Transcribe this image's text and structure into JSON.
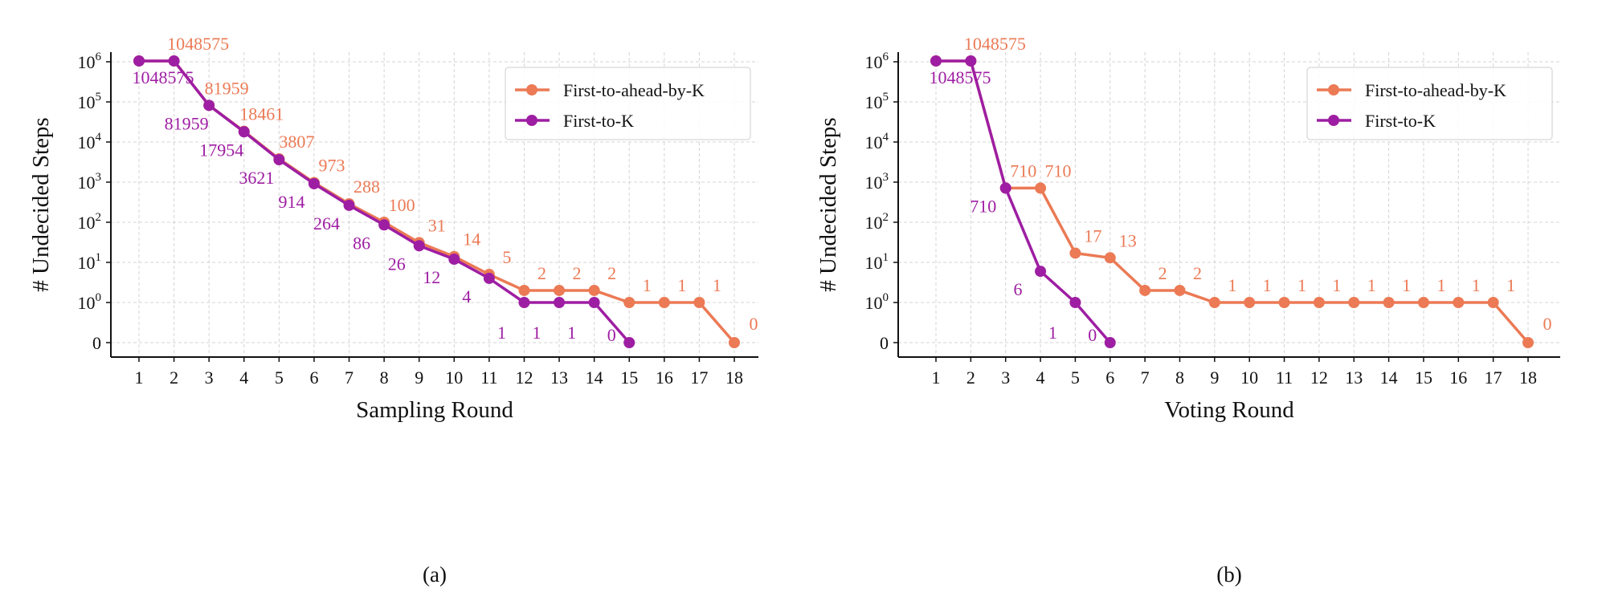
{
  "colors": {
    "first_to_ahead_by_k": "#EB7A55",
    "first_to_k": "#9E1EA3"
  },
  "chart_data": [
    {
      "type": "line",
      "caption": "(a)",
      "xlabel": "Sampling Round",
      "ylabel": "# Undecided Steps",
      "yscale": "symlog",
      "ylim": [
        0,
        1048575
      ],
      "yticks": [
        "0",
        "10^0",
        "10^1",
        "10^2",
        "10^3",
        "10^4",
        "10^5",
        "10^6"
      ],
      "xticks": [
        1,
        2,
        3,
        4,
        5,
        6,
        7,
        8,
        9,
        10,
        11,
        12,
        13,
        14,
        15,
        16,
        17,
        18
      ],
      "grid": true,
      "legend": "top-right",
      "series": [
        {
          "name": "First-to-ahead-by-K",
          "x": [
            1,
            2,
            3,
            4,
            5,
            6,
            7,
            8,
            9,
            10,
            11,
            12,
            13,
            14,
            15,
            16,
            17,
            18
          ],
          "values": [
            1048575,
            1048575,
            81959,
            18461,
            3807,
            973,
            288,
            100,
            31,
            14,
            5,
            2,
            2,
            2,
            1,
            1,
            1,
            0
          ]
        },
        {
          "name": "First-to-K",
          "x": [
            1,
            2,
            3,
            4,
            5,
            6,
            7,
            8,
            9,
            10,
            11,
            12,
            13,
            14,
            15
          ],
          "values": [
            1048575,
            1048575,
            81959,
            17954,
            3621,
            914,
            264,
            86,
            26,
            12,
            4,
            1,
            1,
            1,
            0
          ]
        }
      ]
    },
    {
      "type": "line",
      "caption": "(b)",
      "xlabel": "Voting Round",
      "ylabel": "# Undecided Steps",
      "yscale": "symlog",
      "ylim": [
        0,
        1048575
      ],
      "yticks": [
        "0",
        "10^0",
        "10^1",
        "10^2",
        "10^3",
        "10^4",
        "10^5",
        "10^6"
      ],
      "xticks": [
        1,
        2,
        3,
        4,
        5,
        6,
        7,
        8,
        9,
        10,
        11,
        12,
        13,
        14,
        15,
        16,
        17,
        18
      ],
      "grid": true,
      "legend": "top-right",
      "series": [
        {
          "name": "First-to-ahead-by-K",
          "x": [
            1,
            2,
            3,
            4,
            5,
            6,
            7,
            8,
            9,
            10,
            11,
            12,
            13,
            14,
            15,
            16,
            17,
            18
          ],
          "values": [
            1048575,
            1048575,
            710,
            710,
            17,
            13,
            2,
            2,
            1,
            1,
            1,
            1,
            1,
            1,
            1,
            1,
            1,
            0
          ]
        },
        {
          "name": "First-to-K",
          "x": [
            1,
            2,
            3,
            4,
            5,
            6
          ],
          "values": [
            1048575,
            1048575,
            710,
            6,
            1,
            0
          ]
        }
      ]
    }
  ]
}
